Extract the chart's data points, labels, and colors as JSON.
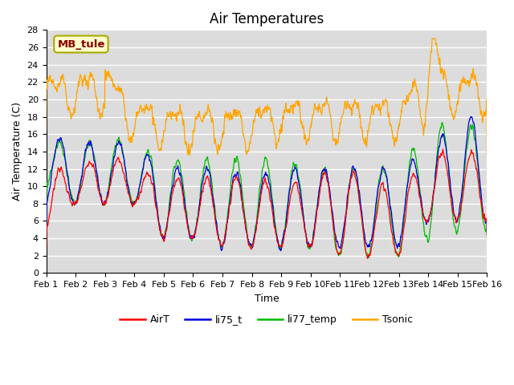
{
  "title": "Air Temperatures",
  "xlabel": "Time",
  "ylabel": "Air Temperature (C)",
  "ylim": [
    0,
    28
  ],
  "yticks": [
    0,
    2,
    4,
    6,
    8,
    10,
    12,
    14,
    16,
    18,
    20,
    22,
    24,
    26,
    28
  ],
  "xtick_labels": [
    "Feb 1",
    "Feb 2",
    "Feb 3",
    "Feb 4",
    "Feb 5",
    "Feb 6",
    "Feb 7",
    "Feb 8",
    "Feb 9",
    "Feb 10",
    "Feb 11",
    "Feb 12",
    "Feb 13",
    "Feb 14",
    "Feb 15",
    "Feb 16"
  ],
  "annotation": "MB_tule",
  "annotation_color": "#8B0000",
  "annotation_bg": "#FFFFCC",
  "annotation_edge": "#AAAA00",
  "colors": {
    "AirT": "#FF0000",
    "li75_t": "#0000DD",
    "li77_temp": "#00BB00",
    "Tsonic": "#FFA500"
  },
  "plot_bg": "#DCDCDC",
  "grid_color": "#FFFFFF",
  "title_fontsize": 12,
  "axis_fontsize": 9,
  "tick_fontsize": 8,
  "legend_fontsize": 9
}
